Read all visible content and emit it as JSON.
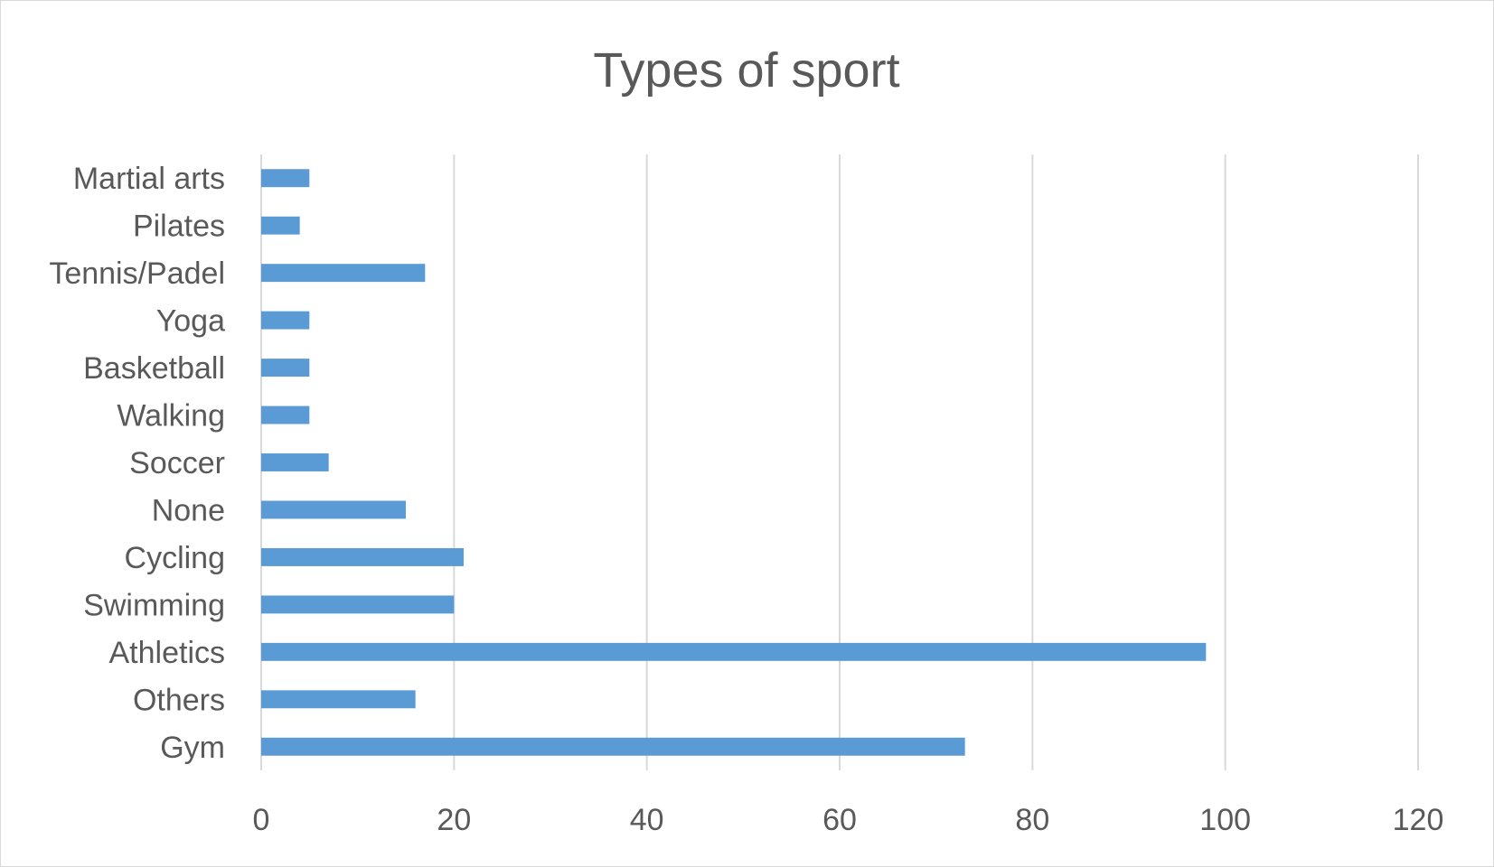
{
  "chart_data": {
    "type": "bar",
    "orientation": "horizontal",
    "title": "Types of sport",
    "categories": [
      "Gym",
      "Others",
      "Athletics",
      "Swimming",
      "Cycling",
      "None",
      "Soccer",
      "Walking",
      "Basketball",
      "Yoga",
      "Tennis/Padel",
      "Pilates",
      "Martial arts"
    ],
    "values": [
      73,
      16,
      98,
      20,
      21,
      15,
      7,
      5,
      5,
      5,
      17,
      4,
      5
    ],
    "xlabel": "",
    "ylabel": "",
    "xlim": [
      0,
      120
    ],
    "xticks": [
      "0",
      "20",
      "40",
      "60",
      "80",
      "100",
      "120"
    ],
    "grid": "vertical",
    "legend": "none",
    "colors": {
      "bar": "#5b9bd5",
      "grid": "#d9d9d9",
      "text": "#595959"
    }
  }
}
